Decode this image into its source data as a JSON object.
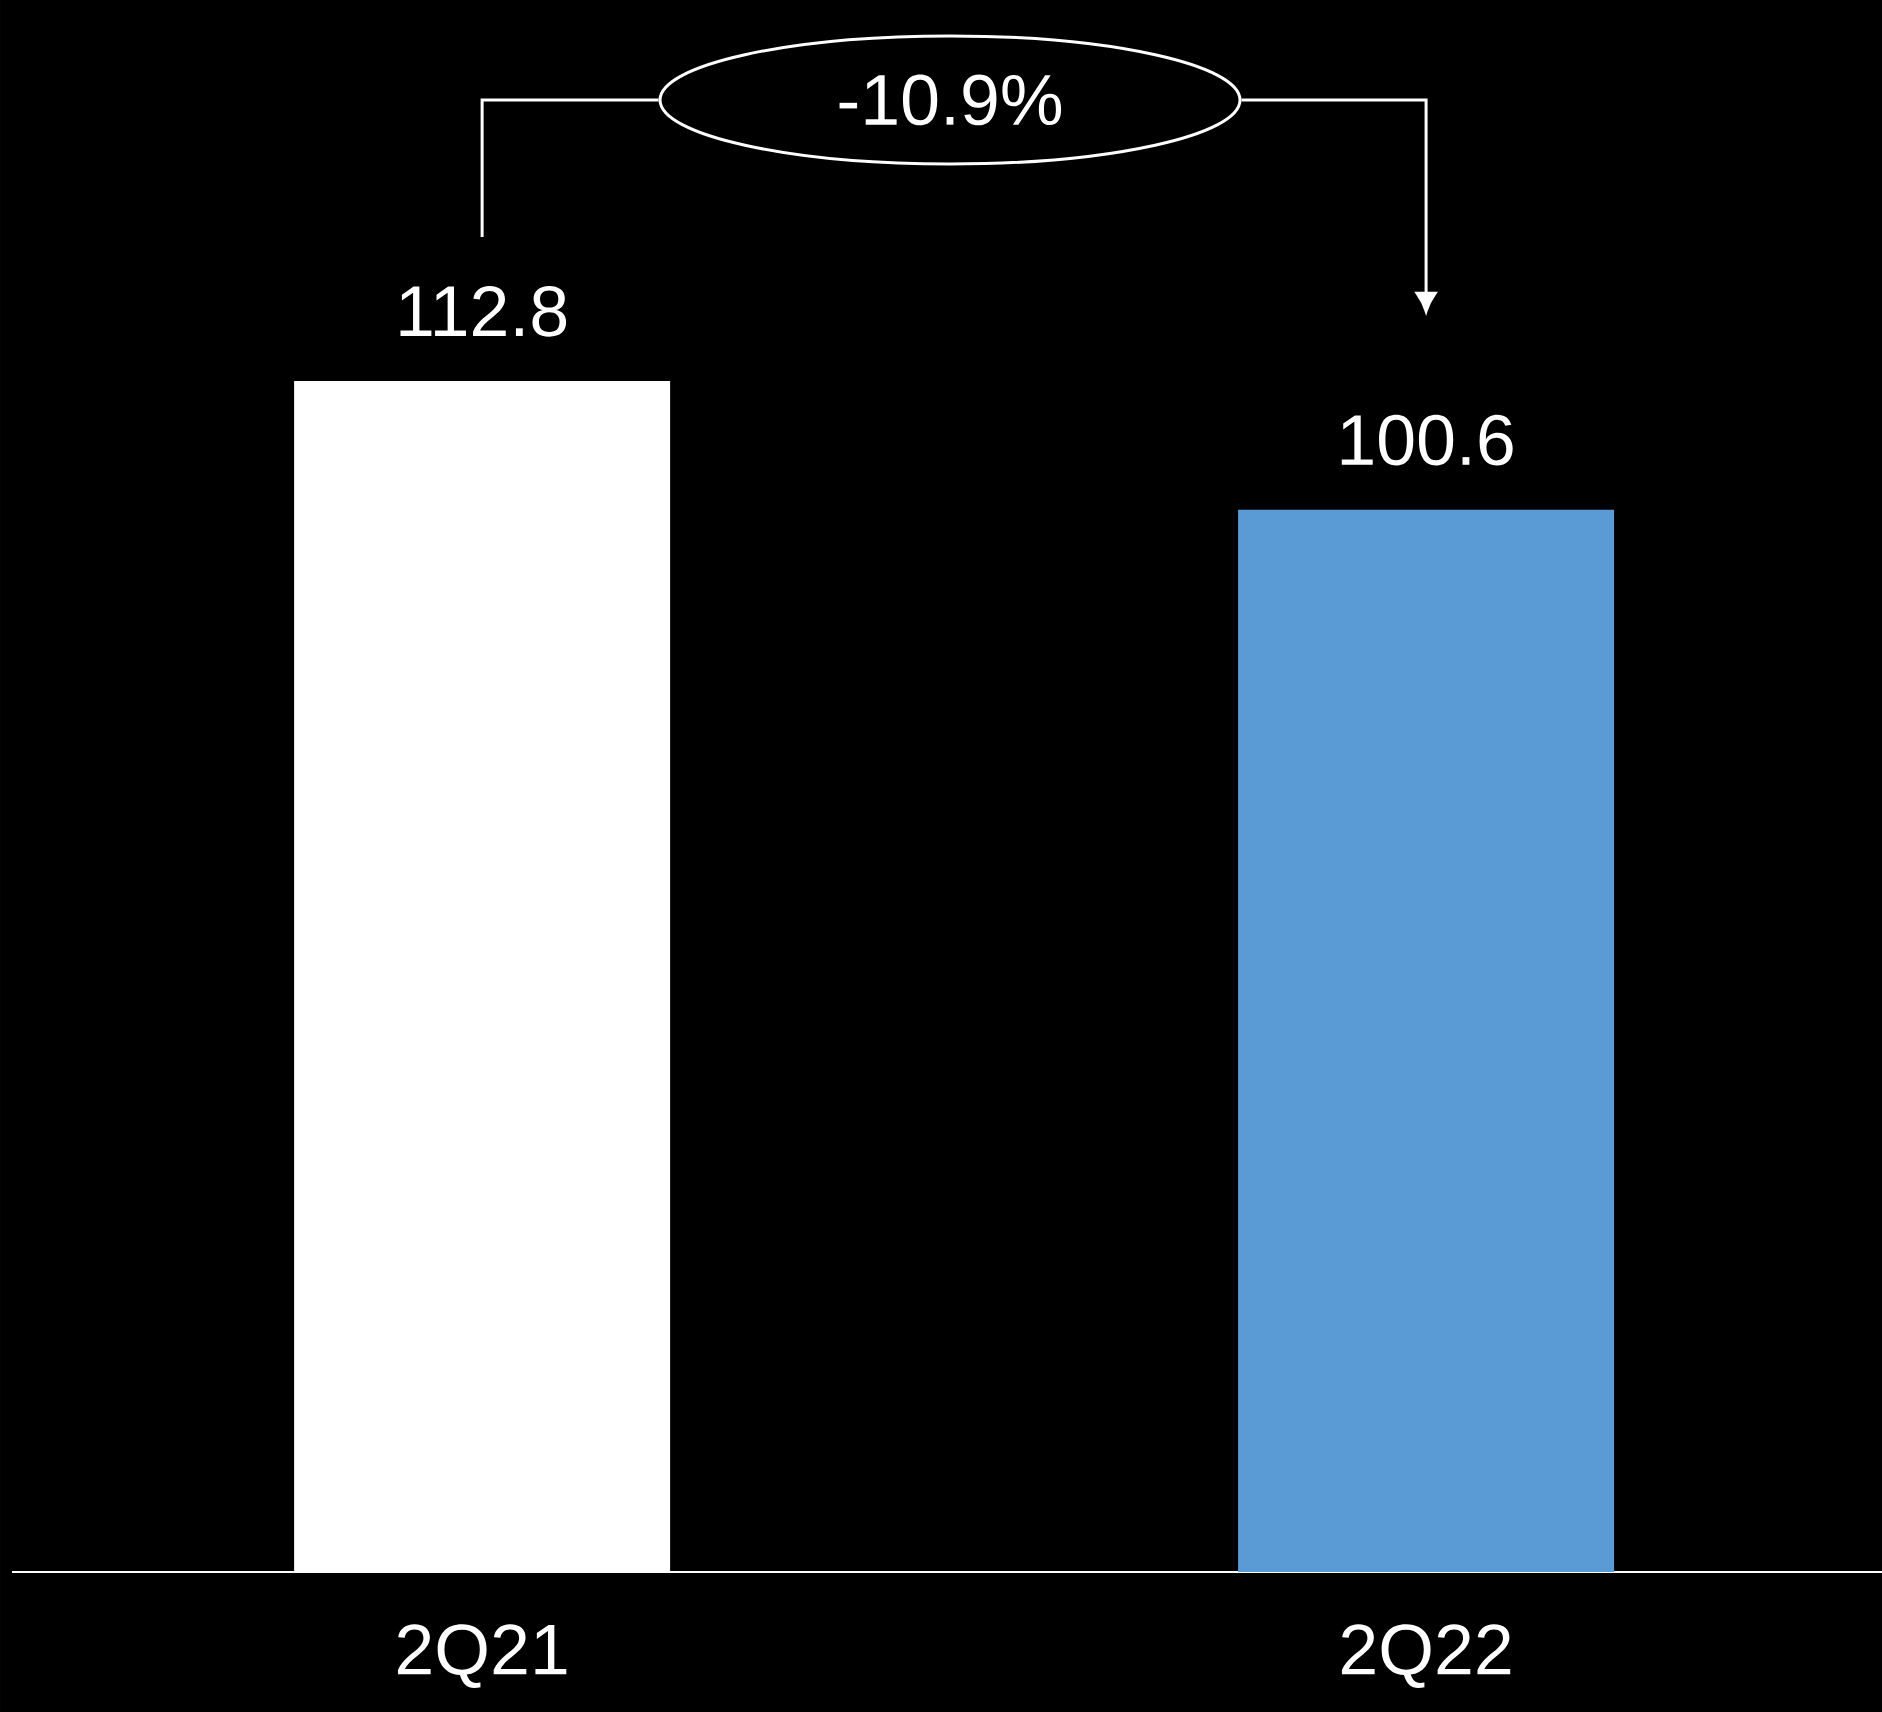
{
  "chart_data": {
    "type": "bar",
    "categories": [
      "2Q21",
      "2Q22"
    ],
    "values": [
      112.8,
      100.6
    ],
    "colors": [
      "#ffffff",
      "#5b9bd5"
    ],
    "tick_labels": "x",
    "data_labels": true,
    "annotations": [
      "-10.9%"
    ]
  }
}
